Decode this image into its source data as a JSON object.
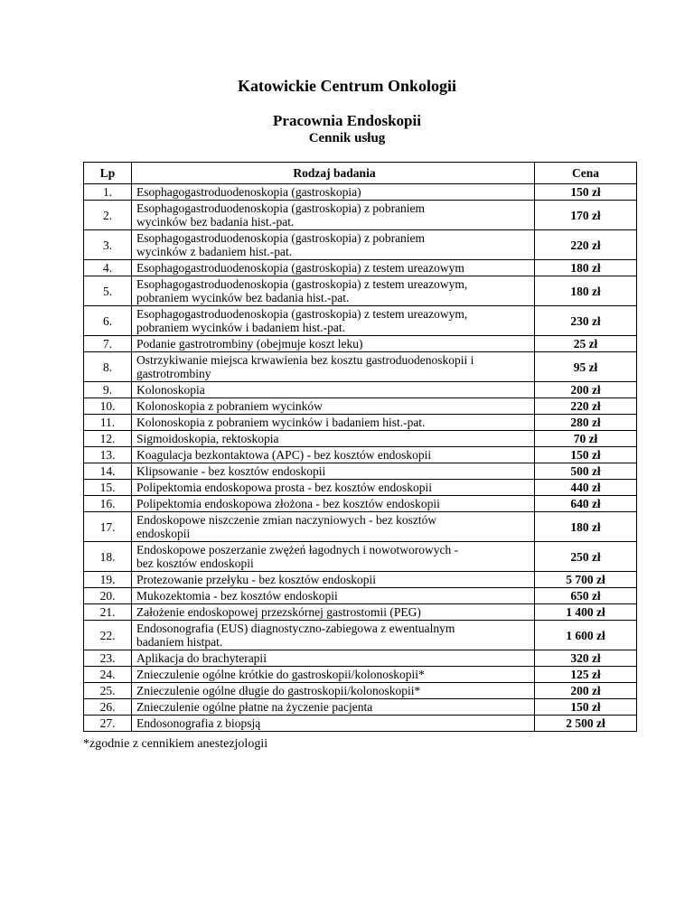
{
  "doc": {
    "title": "Katowickie Centrum Onkologii",
    "subtitle": "Pracownia Endoskopii",
    "heading": "Cennik usług",
    "footnote": "*zgodnie z cennikiem anestezjologii"
  },
  "colors": {
    "text": "#000000",
    "background": "#ffffff",
    "table_border": "#000000"
  },
  "table": {
    "headers": [
      "Lp",
      "Rodzaj badania",
      "Cena"
    ],
    "rows": [
      {
        "lp": "1.",
        "name": "Esophagogastroduodenoskopia (gastroskopia)",
        "price": "150 zł"
      },
      {
        "lp": "2.",
        "name": "Esophagogastroduodenoskopia (gastroskopia) z pobraniem\nwycinków bez badania hist.-pat.",
        "price": "170 zł"
      },
      {
        "lp": "3.",
        "name": "Esophagogastroduodenoskopia (gastroskopia) z pobraniem\nwycinków z badaniem hist.-pat.",
        "price": "220 zł"
      },
      {
        "lp": "4.",
        "name": "Esophagogastroduodenoskopia (gastroskopia) z testem ureazowym",
        "price": "180 zł"
      },
      {
        "lp": "5.",
        "name": "Esophagogastroduodenoskopia (gastroskopia) z testem ureazowym,\npobraniem wycinków bez badania hist.-pat.",
        "price": "180 zł"
      },
      {
        "lp": "6.",
        "name": "Esophagogastroduodenoskopia (gastroskopia) z testem ureazowym,\npobraniem wycinków i badaniem hist.-pat.",
        "price": "230 zł"
      },
      {
        "lp": "7.",
        "name": "Podanie gastrotrombiny (obejmuje koszt leku)",
        "price": "25 zł"
      },
      {
        "lp": "8.",
        "name": "Ostrzykiwanie miejsca krwawienia bez kosztu gastroduodenoskopii i\ngastrotrombiny",
        "price": "95 zł"
      },
      {
        "lp": "9.",
        "name": "Kolonoskopia",
        "price": "200 zł"
      },
      {
        "lp": "10.",
        "name": "Kolonoskopia z pobraniem wycinków",
        "price": "220 zł"
      },
      {
        "lp": "11.",
        "name": "Kolonoskopia z pobraniem wycinków i badaniem hist.-pat.",
        "price": "280 zł"
      },
      {
        "lp": "12.",
        "name": "Sigmoidoskopia, rektoskopia",
        "price": "70 zł"
      },
      {
        "lp": "13.",
        "name": "Koagulacja bezkontaktowa (APC) - bez kosztów endoskopii",
        "price": "150 zł"
      },
      {
        "lp": "14.",
        "name": "Klipsowanie - bez kosztów endoskopii",
        "price": "500 zł"
      },
      {
        "lp": "15.",
        "name": "Polipektomia endoskopowa prosta  - bez kosztów endoskopii",
        "price": "440 zł"
      },
      {
        "lp": "16.",
        "name": "Polipektomia endoskopowa złożona - bez kosztów endoskopii",
        "price": "640 zł"
      },
      {
        "lp": "17.",
        "name": "Endoskopowe niszczenie zmian naczyniowych - bez kosztów\nendoskopii",
        "price": "180 zł"
      },
      {
        "lp": "18.",
        "name": "Endoskopowe poszerzanie zwężeń łagodnych i nowotworowych -\nbez kosztów endoskopii",
        "price": "250 zł"
      },
      {
        "lp": "19.",
        "name": "Protezowanie przełyku - bez kosztów endoskopii",
        "price": "5 700 zł"
      },
      {
        "lp": "20.",
        "name": "Mukozektomia - bez kosztów endoskopii",
        "price": "650 zł"
      },
      {
        "lp": "21.",
        "name": "Założenie endoskopowej przezskórnej gastrostomii (PEG)",
        "price": "1 400 zł"
      },
      {
        "lp": "22.",
        "name": "Endosonografia (EUS) diagnostyczno-zabiegowa z ewentualnym\nbadaniem histpat.",
        "price": "1 600 zł"
      },
      {
        "lp": "23.",
        "name": "Aplikacja do brachyterapii",
        "price": "320 zł"
      },
      {
        "lp": "24.",
        "name": "Znieczulenie ogólne krótkie do gastroskopii/kolonoskopii*",
        "price": "125 zł"
      },
      {
        "lp": "25.",
        "name": "Znieczulenie ogólne długie do gastroskopii/kolonoskopii*",
        "price": "200 zł"
      },
      {
        "lp": "26.",
        "name": "Znieczulenie ogólne płatne na życzenie pacjenta",
        "price": "150 zł"
      },
      {
        "lp": "27.",
        "name": "Endosonografia z biopsją",
        "price": "2 500 zł"
      }
    ]
  }
}
